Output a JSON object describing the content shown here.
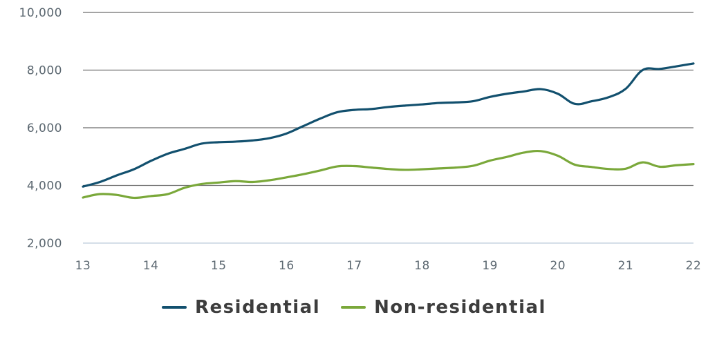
{
  "chart_data": {
    "type": "line",
    "title": "",
    "xlabel": "",
    "ylabel": "",
    "ylim": [
      2000,
      10000
    ],
    "xlim": [
      13,
      22
    ],
    "y_ticks": [
      "2,000",
      "4,000",
      "6,000",
      "8,000",
      "10,000"
    ],
    "y_tick_values": [
      2000,
      4000,
      6000,
      8000,
      10000
    ],
    "x_ticks": [
      "13",
      "14",
      "15",
      "16",
      "17",
      "18",
      "19",
      "20",
      "21",
      "22"
    ],
    "x_tick_values": [
      13,
      14,
      15,
      16,
      17,
      18,
      19,
      20,
      21,
      22
    ],
    "grid": "horizontal",
    "legend_position": "bottom",
    "series": [
      {
        "name": "Residential",
        "color": "#12506e",
        "x": [
          13,
          13.25,
          13.5,
          13.75,
          14,
          14.25,
          14.5,
          14.75,
          15,
          15.25,
          15.5,
          15.75,
          16,
          16.25,
          16.5,
          16.75,
          17,
          17.25,
          17.5,
          17.75,
          18,
          18.25,
          18.5,
          18.75,
          19,
          19.25,
          19.5,
          19.75,
          20,
          20.25,
          20.5,
          20.75,
          21,
          21.25,
          21.5,
          21.75,
          22
        ],
        "y": [
          3960,
          4120,
          4350,
          4560,
          4850,
          5100,
          5270,
          5450,
          5500,
          5520,
          5560,
          5640,
          5800,
          6060,
          6320,
          6540,
          6620,
          6650,
          6720,
          6770,
          6810,
          6860,
          6880,
          6920,
          7070,
          7180,
          7260,
          7340,
          7180,
          6830,
          6920,
          7060,
          7350,
          8000,
          8040,
          8130,
          8230
        ]
      },
      {
        "name": "Non-residential",
        "color": "#7aa83a",
        "x": [
          13,
          13.25,
          13.5,
          13.75,
          14,
          14.25,
          14.5,
          14.75,
          15,
          15.25,
          15.5,
          15.75,
          16,
          16.25,
          16.5,
          16.75,
          17,
          17.25,
          17.5,
          17.75,
          18,
          18.25,
          18.5,
          18.75,
          19,
          19.25,
          19.5,
          19.75,
          20,
          20.25,
          20.5,
          20.75,
          21,
          21.25,
          21.5,
          21.75,
          22
        ],
        "y": [
          3580,
          3700,
          3670,
          3570,
          3630,
          3700,
          3920,
          4050,
          4100,
          4150,
          4120,
          4180,
          4280,
          4390,
          4520,
          4660,
          4670,
          4620,
          4570,
          4540,
          4560,
          4590,
          4620,
          4680,
          4860,
          4990,
          5140,
          5190,
          5030,
          4720,
          4640,
          4570,
          4580,
          4800,
          4650,
          4700,
          4740
        ]
      }
    ]
  }
}
